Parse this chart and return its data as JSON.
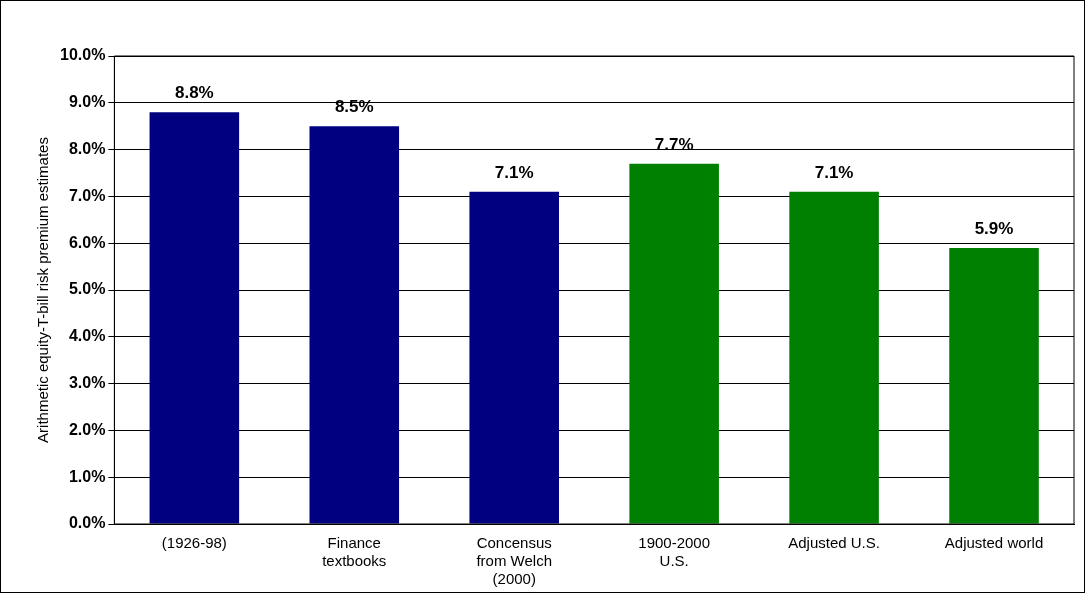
{
  "chart_data": {
    "type": "bar",
    "ylabel": "Arithmetic equity-T-bill risk premium estimates",
    "categories": [
      "(1926-98)",
      "Finance\ntextbooks",
      "Concensus\nfrom Welch\n(2000)",
      "1900-2000\nU.S.",
      "Adjusted U.S.",
      "Adjusted world"
    ],
    "values": [
      8.8,
      8.5,
      7.1,
      7.7,
      7.1,
      5.9
    ],
    "colors": [
      "#000080",
      "#000080",
      "#000080",
      "#008000",
      "#008000",
      "#008000"
    ],
    "value_labels": [
      "8.8%",
      "8.5%",
      "7.1%",
      "7.7%",
      "7.1%",
      "5.9%"
    ],
    "ylim": [
      0,
      10
    ],
    "yticks": [
      {
        "value": 0,
        "label": "0.0%"
      },
      {
        "value": 1,
        "label": "1.0%"
      },
      {
        "value": 2,
        "label": "2.0%"
      },
      {
        "value": 3,
        "label": "3.0%"
      },
      {
        "value": 4,
        "label": "4.0%"
      },
      {
        "value": 5,
        "label": "5.0%"
      },
      {
        "value": 6,
        "label": "6.0%"
      },
      {
        "value": 7,
        "label": "7.0%"
      },
      {
        "value": 8,
        "label": "8.0%"
      },
      {
        "value": 9,
        "label": "9.0%"
      },
      {
        "value": 10,
        "label": "10.0%"
      }
    ],
    "grid": "y"
  }
}
